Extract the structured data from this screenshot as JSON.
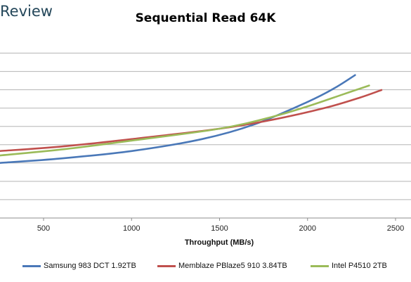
{
  "header": {
    "brand": "Review"
  },
  "chart_data": {
    "type": "line",
    "title": "Sequential Read 64K",
    "xlabel": "Throughput (MB/s)",
    "ylabel": "",
    "xlim": [
      250,
      2600
    ],
    "x_ticks": [
      500,
      1000,
      1500,
      2000,
      2500
    ],
    "ylim": [
      0,
      12
    ],
    "grid": "horizontal",
    "legend_position": "bottom",
    "series": [
      {
        "name": "Samsung 983 DCT 1.92TB",
        "color": "#4a78b8",
        "points": [
          [
            250,
            3.7
          ],
          [
            600,
            4.0
          ],
          [
            1000,
            4.5
          ],
          [
            1400,
            5.3
          ],
          [
            1700,
            6.3
          ],
          [
            2000,
            7.8
          ],
          [
            2150,
            8.7
          ],
          [
            2270,
            9.6
          ]
        ]
      },
      {
        "name": "Memblaze PBlaze5 910 3.84TB",
        "color": "#c0504d",
        "points": [
          [
            250,
            4.5
          ],
          [
            600,
            4.8
          ],
          [
            1000,
            5.3
          ],
          [
            1500,
            6.0
          ],
          [
            1800,
            6.6
          ],
          [
            2100,
            7.4
          ],
          [
            2300,
            8.1
          ],
          [
            2420,
            8.6
          ]
        ]
      },
      {
        "name": "Intel P4510 2TB",
        "color": "#9bbb59",
        "points": [
          [
            250,
            4.2
          ],
          [
            600,
            4.6
          ],
          [
            1000,
            5.2
          ],
          [
            1500,
            6.0
          ],
          [
            1800,
            6.8
          ],
          [
            2000,
            7.5
          ],
          [
            2200,
            8.3
          ],
          [
            2350,
            8.9
          ]
        ]
      }
    ]
  }
}
